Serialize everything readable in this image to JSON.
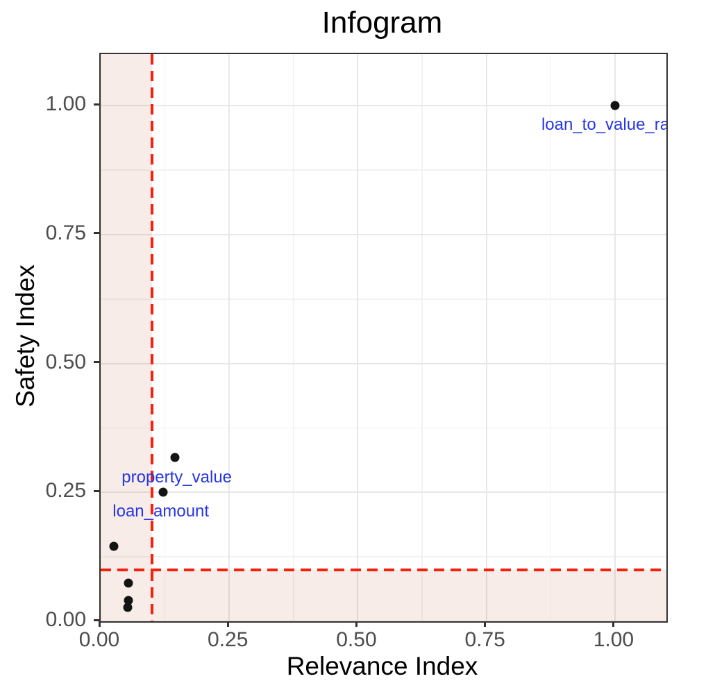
{
  "chart_data": {
    "type": "scatter",
    "title": "Infogram",
    "xlabel": "Relevance Index",
    "ylabel": "Safety Index",
    "xlim": [
      0,
      1.1
    ],
    "ylim": [
      0,
      1.1
    ],
    "grid": "major+minor",
    "legend": "none",
    "x_ticks": {
      "values": [
        0,
        0.25,
        0.5,
        0.75,
        1.0
      ],
      "labels": [
        "0.00",
        "0.25",
        "0.50",
        "0.75",
        "1.00"
      ]
    },
    "y_ticks": {
      "values": [
        0,
        0.25,
        0.5,
        0.75,
        1.0
      ],
      "labels": [
        "0.00",
        "0.25",
        "0.50",
        "0.75",
        "1.00"
      ]
    },
    "x_minor": [
      0.125,
      0.375,
      0.625,
      0.875
    ],
    "y_minor": [
      0.125,
      0.375,
      0.625,
      0.875
    ],
    "threshold": {
      "x": 0.1,
      "y": 0.1
    },
    "points": [
      {
        "x": 1.0,
        "y": 1.0,
        "label": "loan_to_value_ra"
      },
      {
        "x": 0.145,
        "y": 0.318,
        "label": "property_value"
      },
      {
        "x": 0.122,
        "y": 0.25,
        "label": "loan_amount"
      },
      {
        "x": 0.026,
        "y": 0.146,
        "label": ""
      },
      {
        "x": 0.054,
        "y": 0.074,
        "label": ""
      },
      {
        "x": 0.054,
        "y": 0.04,
        "label": ""
      },
      {
        "x": 0.052,
        "y": 0.027,
        "label": ""
      }
    ],
    "point_labels": [
      {
        "text": "loan_to_value_ra",
        "x": 0.857,
        "y": 0.963,
        "anchor": "start"
      },
      {
        "text": "property_value",
        "x": 0.148,
        "y": 0.279,
        "anchor": "middle"
      },
      {
        "text": "loan_amount",
        "x": 0.117,
        "y": 0.213,
        "anchor": "middle"
      }
    ],
    "colors": {
      "point": "#141414",
      "label_text": "#2636e4",
      "threshold_line": "#f5200e",
      "shaded_band": "rgba(185,65,25,0.10)",
      "grid_major": "#e7e7e7",
      "grid_minor": "#f2f2f2",
      "panel_border": "#333333",
      "tick_text": "#4d4d4d"
    }
  }
}
